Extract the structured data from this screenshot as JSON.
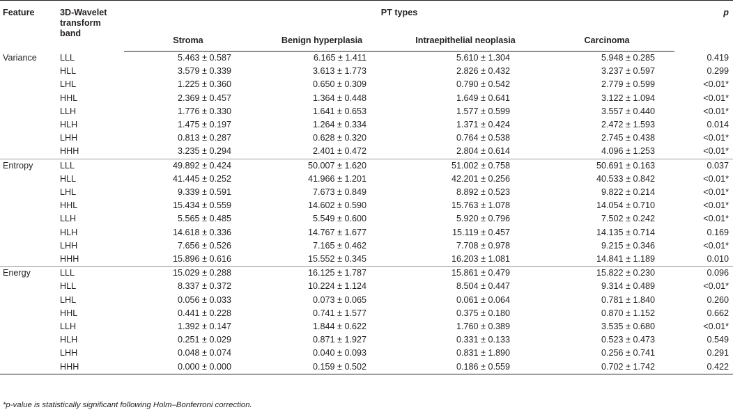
{
  "header": {
    "feature": "Feature",
    "band_line1": "3D-Wavelet",
    "band_line2": "transform band",
    "pt_types": "PT types",
    "p": "p",
    "subheaders": [
      "Stroma",
      "Benign hyperplasia",
      "Intraepithelial neoplasia",
      "Carcinoma"
    ]
  },
  "groups": [
    {
      "feature": "Variance",
      "rows": [
        {
          "band": "LLL",
          "stroma": "5.463 ± 0.587",
          "benign": "6.165 ± 1.411",
          "intra": "5.610 ± 1.304",
          "carcinoma": "5.948 ± 0.285",
          "p": "0.419"
        },
        {
          "band": "HLL",
          "stroma": "3.579 ± 0.339",
          "benign": "3.613 ± 1.773",
          "intra": "2.826 ± 0.432",
          "carcinoma": "3.237 ± 0.597",
          "p": "0.299"
        },
        {
          "band": "LHL",
          "stroma": "1.225 ± 0.360",
          "benign": "0.650 ± 0.309",
          "intra": "0.790 ± 0.542",
          "carcinoma": "2.779 ± 0.599",
          "p": "<0.01*"
        },
        {
          "band": "HHL",
          "stroma": "2.369 ± 0.457",
          "benign": "1.364 ± 0.448",
          "intra": "1.649 ± 0.641",
          "carcinoma": "3.122 ± 1.094",
          "p": "<0.01*"
        },
        {
          "band": "LLH",
          "stroma": "1.776 ± 0.330",
          "benign": "1.641 ± 0.653",
          "intra": "1.577 ± 0.599",
          "carcinoma": "3.557 ± 0.440",
          "p": "<0.01*"
        },
        {
          "band": "HLH",
          "stroma": "1.475 ± 0.197",
          "benign": "1.264 ± 0.334",
          "intra": "1.371 ± 0.424",
          "carcinoma": "2.472 ± 1.593",
          "p": "0.014"
        },
        {
          "band": "LHH",
          "stroma": "0.813 ± 0.287",
          "benign": "0.628 ± 0.320",
          "intra": "0.764 ± 0.538",
          "carcinoma": "2.745 ± 0.438",
          "p": "<0.01*"
        },
        {
          "band": "HHH",
          "stroma": "3.235 ± 0.294",
          "benign": "2.401 ± 0.472",
          "intra": "2.804 ± 0.614",
          "carcinoma": "4.096 ± 1.253",
          "p": "<0.01*"
        }
      ]
    },
    {
      "feature": "Entropy",
      "rows": [
        {
          "band": "LLL",
          "stroma": "49.892 ± 0.424",
          "benign": "50.007 ± 1.620",
          "intra": "51.002 ± 0.758",
          "carcinoma": "50.691 ± 0.163",
          "p": "0.037"
        },
        {
          "band": "HLL",
          "stroma": "41.445 ± 0.252",
          "benign": "41.966 ± 1.201",
          "intra": "42.201 ± 0.256",
          "carcinoma": "40.533 ± 0.842",
          "p": "<0.01*"
        },
        {
          "band": "LHL",
          "stroma": "9.339 ± 0.591",
          "benign": "7.673 ± 0.849",
          "intra": "8.892 ± 0.523",
          "carcinoma": "9.822 ± 0.214",
          "p": "<0.01*"
        },
        {
          "band": "HHL",
          "stroma": "15.434 ± 0.559",
          "benign": "14.602 ± 0.590",
          "intra": "15.763 ± 1.078",
          "carcinoma": "14.054 ± 0.710",
          "p": "<0.01*"
        },
        {
          "band": "LLH",
          "stroma": "5.565 ± 0.485",
          "benign": "5.549 ± 0.600",
          "intra": "5.920 ± 0.796",
          "carcinoma": "7.502 ± 0.242",
          "p": "<0.01*"
        },
        {
          "band": "HLH",
          "stroma": "14.618 ± 0.336",
          "benign": "14.767 ± 1.677",
          "intra": "15.119 ± 0.457",
          "carcinoma": "14.135 ± 0.714",
          "p": "0.169"
        },
        {
          "band": "LHH",
          "stroma": "7.656 ± 0.526",
          "benign": "7.165 ± 0.462",
          "intra": "7.708 ± 0.978",
          "carcinoma": "9.215 ± 0.346",
          "p": "<0.01*"
        },
        {
          "band": "HHH",
          "stroma": "15.896 ± 0.616",
          "benign": "15.552 ± 0.345",
          "intra": "16.203 ± 1.081",
          "carcinoma": "14.841 ± 1.189",
          "p": "0.010"
        }
      ]
    },
    {
      "feature": "Energy",
      "rows": [
        {
          "band": "LLL",
          "stroma": "15.029 ± 0.288",
          "benign": "16.125 ± 1.787",
          "intra": "15.861 ± 0.479",
          "carcinoma": "15.822 ± 0.230",
          "p": "0.096"
        },
        {
          "band": "HLL",
          "stroma": "8.337 ± 0.372",
          "benign": "10.224 ± 1.124",
          "intra": "8.504 ± 0.447",
          "carcinoma": "9.314 ± 0.489",
          "p": "<0.01*"
        },
        {
          "band": "LHL",
          "stroma": "0.056 ± 0.033",
          "benign": "0.073 ± 0.065",
          "intra": "0.061 ± 0.064",
          "carcinoma": "0.781 ± 1.840",
          "p": "0.260"
        },
        {
          "band": "HHL",
          "stroma": "0.441 ± 0.228",
          "benign": "0.741 ± 1.577",
          "intra": "0.375 ± 0.180",
          "carcinoma": "0.870 ± 1.152",
          "p": "0.662"
        },
        {
          "band": "LLH",
          "stroma": "1.392 ± 0.147",
          "benign": "1.844 ± 0.622",
          "intra": "1.760 ± 0.389",
          "carcinoma": "3.535 ± 0.680",
          "p": "<0.01*"
        },
        {
          "band": "HLH",
          "stroma": "0.251 ± 0.029",
          "benign": "0.871 ± 1.927",
          "intra": "0.331 ± 0.133",
          "carcinoma": "0.523 ± 0.473",
          "p": "0.549"
        },
        {
          "band": "LHH",
          "stroma": "0.048 ± 0.074",
          "benign": "0.040 ± 0.093",
          "intra": "0.831 ± 1.890",
          "carcinoma": "0.256 ± 0.741",
          "p": "0.291"
        },
        {
          "band": "HHH",
          "stroma": "0.000 ± 0.000",
          "benign": "0.159 ± 0.502",
          "intra": "0.186 ± 0.559",
          "carcinoma": "0.702 ± 1.742",
          "p": "0.422"
        }
      ]
    }
  ],
  "footnote": "*p-value is statistically significant following Holm–Bonferroni correction."
}
